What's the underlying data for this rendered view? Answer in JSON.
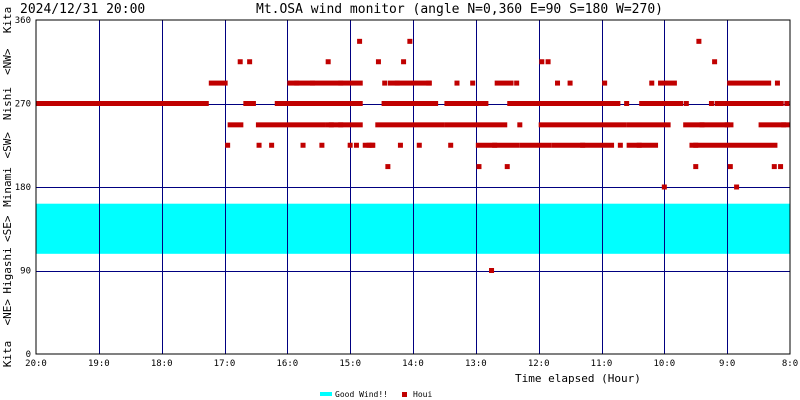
{
  "chart_data": {
    "type": "scatter",
    "title": "Mt.OSA wind monitor (angle N=0,360 E=90 S=180 W=270)",
    "timestamp": "2024/12/31 20:00",
    "xlabel": "Time elapsed (Hour)",
    "x_ticks": [
      "20:0",
      "19:0",
      "18:0",
      "17:0",
      "16:0",
      "15:0",
      "14:0",
      "13:0",
      "12:0",
      "11:0",
      "10:0",
      "9:0",
      "8:0"
    ],
    "y_ticks": [
      "0",
      "90",
      "180",
      "270",
      "360"
    ],
    "y_axis_labels": [
      "Kita",
      "<NE>",
      "Higashi",
      "<SE>",
      "Minami",
      "<SW>",
      "Nishi",
      "<NW>",
      "Kita"
    ],
    "ylim": [
      0,
      360
    ],
    "xlim_hours_elapsed": [
      0,
      12
    ],
    "good_wind_band": {
      "name": "Good Wind!!",
      "from": 108,
      "to": 162,
      "color": "#00ffff"
    },
    "legend": [
      {
        "name": "Good Wind!!",
        "color": "#00ffff"
      },
      {
        "name": "Houi",
        "color": "#c00000"
      }
    ],
    "series": [
      {
        "name": "Houi",
        "color": "#c00000",
        "segments": [
          {
            "from": 0.0,
            "to": 2.75,
            "level": 270
          },
          {
            "from": 2.75,
            "to": 3.05,
            "level": 292
          },
          {
            "from": 3.05,
            "to": 3.3,
            "level": 247
          },
          {
            "from": 3.3,
            "to": 3.5,
            "level": 270
          },
          {
            "from": 3.5,
            "to": 4.6,
            "level": 247
          },
          {
            "from": 3.8,
            "to": 4.7,
            "level": 270
          },
          {
            "from": 4.0,
            "to": 5.2,
            "level": 292
          },
          {
            "from": 4.5,
            "to": 5.2,
            "level": 270
          },
          {
            "from": 4.6,
            "to": 5.2,
            "level": 247
          },
          {
            "from": 5.2,
            "to": 5.4,
            "level": 225
          },
          {
            "from": 5.4,
            "to": 6.5,
            "level": 247
          },
          {
            "from": 5.5,
            "to": 6.4,
            "level": 270
          },
          {
            "from": 5.6,
            "to": 6.3,
            "level": 292
          },
          {
            "from": 6.5,
            "to": 7.2,
            "level": 270
          },
          {
            "from": 6.5,
            "to": 7.5,
            "level": 247
          },
          {
            "from": 7.0,
            "to": 7.7,
            "level": 225
          },
          {
            "from": 7.3,
            "to": 7.6,
            "level": 292
          },
          {
            "from": 7.5,
            "to": 8.2,
            "level": 270
          },
          {
            "from": 7.7,
            "to": 8.2,
            "level": 225
          },
          {
            "from": 8.0,
            "to": 9.4,
            "level": 247
          },
          {
            "from": 8.1,
            "to": 9.3,
            "level": 270
          },
          {
            "from": 8.2,
            "to": 9.2,
            "level": 225
          },
          {
            "from": 9.4,
            "to": 10.1,
            "level": 247
          },
          {
            "from": 9.4,
            "to": 9.9,
            "level": 225
          },
          {
            "from": 9.6,
            "to": 10.3,
            "level": 270
          },
          {
            "from": 9.9,
            "to": 10.2,
            "level": 292
          },
          {
            "from": 10.3,
            "to": 11.1,
            "level": 247
          },
          {
            "from": 10.4,
            "to": 11.8,
            "level": 225
          },
          {
            "from": 10.8,
            "to": 11.9,
            "level": 270
          },
          {
            "from": 11.0,
            "to": 11.7,
            "level": 292
          },
          {
            "from": 11.5,
            "to": 12.0,
            "level": 247
          }
        ],
        "points": [
          {
            "x": 3.25,
            "y": 315
          },
          {
            "x": 3.4,
            "y": 315
          },
          {
            "x": 3.05,
            "y": 225
          },
          {
            "x": 3.55,
            "y": 225
          },
          {
            "x": 3.75,
            "y": 225
          },
          {
            "x": 4.25,
            "y": 225
          },
          {
            "x": 4.15,
            "y": 292
          },
          {
            "x": 4.4,
            "y": 292
          },
          {
            "x": 4.55,
            "y": 225
          },
          {
            "x": 5.1,
            "y": 225
          },
          {
            "x": 4.65,
            "y": 315
          },
          {
            "x": 4.85,
            "y": 292
          },
          {
            "x": 4.95,
            "y": 270
          },
          {
            "x": 4.7,
            "y": 247
          },
          {
            "x": 4.85,
            "y": 247
          },
          {
            "x": 5.0,
            "y": 225
          },
          {
            "x": 5.15,
            "y": 337
          },
          {
            "x": 5.3,
            "y": 225
          },
          {
            "x": 5.45,
            "y": 315
          },
          {
            "x": 5.55,
            "y": 292
          },
          {
            "x": 5.35,
            "y": 225
          },
          {
            "x": 5.6,
            "y": 202
          },
          {
            "x": 5.8,
            "y": 225
          },
          {
            "x": 5.85,
            "y": 315
          },
          {
            "x": 5.95,
            "y": 337
          },
          {
            "x": 5.75,
            "y": 292
          },
          {
            "x": 6.1,
            "y": 225
          },
          {
            "x": 6.25,
            "y": 292
          },
          {
            "x": 6.6,
            "y": 225
          },
          {
            "x": 6.95,
            "y": 292
          },
          {
            "x": 6.7,
            "y": 292
          },
          {
            "x": 7.05,
            "y": 202
          },
          {
            "x": 7.25,
            "y": 90
          },
          {
            "x": 7.1,
            "y": 270
          },
          {
            "x": 7.3,
            "y": 225
          },
          {
            "x": 7.5,
            "y": 202
          },
          {
            "x": 7.65,
            "y": 292
          },
          {
            "x": 7.7,
            "y": 247
          },
          {
            "x": 7.9,
            "y": 270
          },
          {
            "x": 8.05,
            "y": 315
          },
          {
            "x": 8.15,
            "y": 315
          },
          {
            "x": 8.3,
            "y": 292
          },
          {
            "x": 8.45,
            "y": 270
          },
          {
            "x": 8.5,
            "y": 292
          },
          {
            "x": 8.7,
            "y": 225
          },
          {
            "x": 8.9,
            "y": 270
          },
          {
            "x": 9.05,
            "y": 292
          },
          {
            "x": 9.4,
            "y": 270
          },
          {
            "x": 9.6,
            "y": 225
          },
          {
            "x": 9.3,
            "y": 225
          },
          {
            "x": 9.8,
            "y": 292
          },
          {
            "x": 10.0,
            "y": 180
          },
          {
            "x": 10.35,
            "y": 270
          },
          {
            "x": 10.5,
            "y": 202
          },
          {
            "x": 10.5,
            "y": 225
          },
          {
            "x": 10.6,
            "y": 247
          },
          {
            "x": 10.55,
            "y": 337
          },
          {
            "x": 10.75,
            "y": 270
          },
          {
            "x": 10.8,
            "y": 315
          },
          {
            "x": 10.95,
            "y": 270
          },
          {
            "x": 11.0,
            "y": 247
          },
          {
            "x": 11.05,
            "y": 202
          },
          {
            "x": 11.15,
            "y": 180
          },
          {
            "x": 11.4,
            "y": 270
          },
          {
            "x": 11.7,
            "y": 270
          },
          {
            "x": 11.75,
            "y": 202
          },
          {
            "x": 11.85,
            "y": 202
          },
          {
            "x": 11.8,
            "y": 292
          },
          {
            "x": 11.95,
            "y": 270
          },
          {
            "x": 11.9,
            "y": 247
          }
        ]
      }
    ]
  }
}
